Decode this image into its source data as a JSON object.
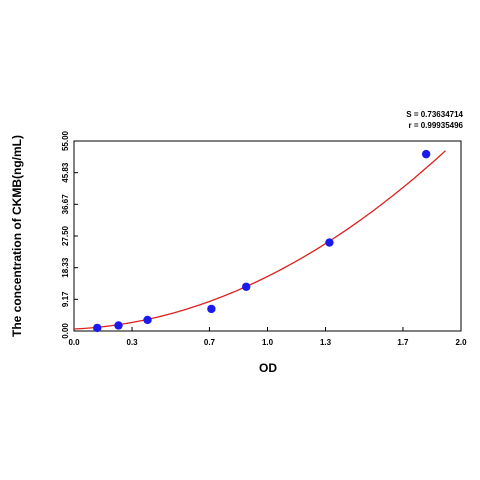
{
  "chart_data": {
    "type": "scatter",
    "xlabel": "OD",
    "ylabel": "The concentration of CKMB(ng/mL)",
    "xlim": [
      0,
      2.0
    ],
    "ylim": [
      0,
      55.0
    ],
    "x_ticks": [
      "0.0",
      "0.3",
      "0.7",
      "1.0",
      "1.3",
      "1.7",
      "2.0"
    ],
    "y_ticks": [
      "0.00",
      "9.17",
      "18.33",
      "27.50",
      "36.67",
      "45.83",
      "55.00"
    ],
    "grid": false,
    "stats": {
      "s": "S = 0.73634714",
      "r": "r = 0.99935496"
    },
    "points": [
      {
        "x": 0.12,
        "y": 0.9
      },
      {
        "x": 0.23,
        "y": 1.6
      },
      {
        "x": 0.38,
        "y": 3.2
      },
      {
        "x": 0.71,
        "y": 6.4
      },
      {
        "x": 0.89,
        "y": 12.8
      },
      {
        "x": 1.32,
        "y": 25.6
      },
      {
        "x": 1.82,
        "y": 51.2
      }
    ],
    "fit_curve": {
      "type": "polynomial",
      "coefficients": [
        0.58,
        2.5,
        12.7
      ],
      "x_range": [
        0,
        1.92
      ]
    },
    "colors": {
      "points": "#1a1aee",
      "curve": "#e02020",
      "axes": "#000000"
    }
  }
}
